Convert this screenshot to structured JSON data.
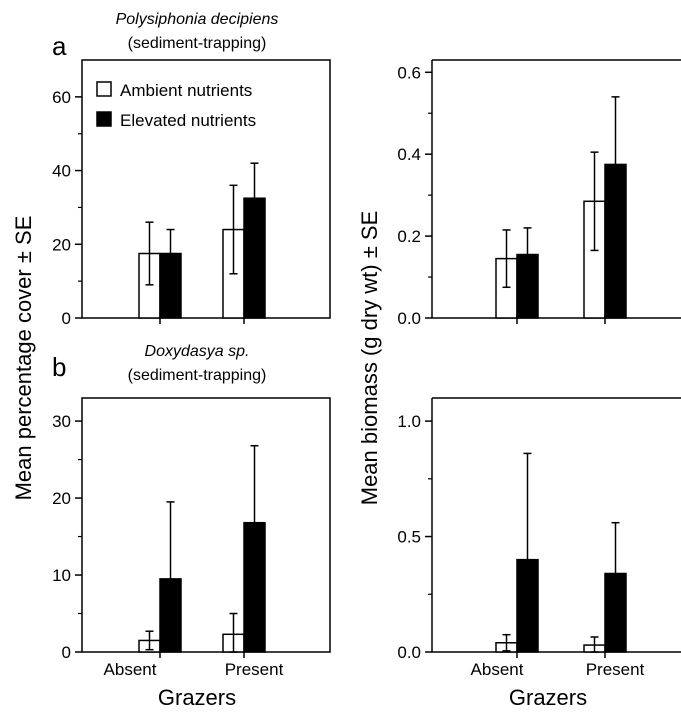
{
  "panel_a": {
    "letter": "a",
    "species": "Polysiphonia decipiens",
    "subtitle": "(sediment-trapping)"
  },
  "panel_b": {
    "letter": "b",
    "species": "Doxydasya sp.",
    "subtitle": "(sediment-trapping)"
  },
  "legend": [
    {
      "name": "Ambient nutrients",
      "color": "#ffffff"
    },
    {
      "name": "Elevated nutrients",
      "color": "#000000"
    }
  ],
  "left_ylabel": "Mean percentage cover ± SE",
  "right_ylabel": "Mean biomass (g dry wt) ± SE",
  "xlabel": "Grazers",
  "categories": [
    "Absent",
    "Present"
  ],
  "chart_data": [
    {
      "type": "bar",
      "categories": [
        "Absent",
        "Present"
      ],
      "ylim": [
        0,
        70
      ],
      "yticks": [
        0,
        20,
        40,
        60
      ],
      "yticklabels": [
        "0",
        "20",
        "40",
        "60"
      ],
      "series": [
        {
          "name": "Ambient nutrients",
          "values": [
            17.5,
            24
          ],
          "errors": [
            8.5,
            12
          ]
        },
        {
          "name": "Elevated nutrients",
          "values": [
            17.5,
            32.5
          ],
          "errors": [
            6.5,
            9.5
          ]
        }
      ]
    },
    {
      "type": "bar",
      "categories": [
        "Absent",
        "Present"
      ],
      "ylim": [
        0,
        0.63
      ],
      "yticks": [
        0,
        0.2,
        0.4,
        0.6
      ],
      "yticklabels": [
        "0.0",
        "0.2",
        "0.4",
        "0.6"
      ],
      "series": [
        {
          "name": "Ambient nutrients",
          "values": [
            0.145,
            0.285
          ],
          "errors": [
            0.07,
            0.12
          ]
        },
        {
          "name": "Elevated nutrients",
          "values": [
            0.155,
            0.375
          ],
          "errors": [
            0.065,
            0.165
          ]
        }
      ]
    },
    {
      "type": "bar",
      "categories": [
        "Absent",
        "Present"
      ],
      "ylim": [
        0,
        33
      ],
      "yticks": [
        0,
        10,
        20,
        30
      ],
      "yticklabels": [
        "0",
        "10",
        "20",
        "30"
      ],
      "series": [
        {
          "name": "Ambient nutrients",
          "values": [
            1.5,
            2.3
          ],
          "errors": [
            1.2,
            2.7
          ]
        },
        {
          "name": "Elevated nutrients",
          "values": [
            9.5,
            16.8
          ],
          "errors": [
            10.0,
            10.0
          ]
        }
      ]
    },
    {
      "type": "bar",
      "categories": [
        "Absent",
        "Present"
      ],
      "ylim": [
        0,
        1.1
      ],
      "yticks": [
        0,
        0.5,
        1.0
      ],
      "yticklabels": [
        "0.0",
        "0.5",
        "1.0"
      ],
      "series": [
        {
          "name": "Ambient nutrients",
          "values": [
            0.04,
            0.03
          ],
          "errors": [
            0.035,
            0.035
          ]
        },
        {
          "name": "Elevated nutrients",
          "values": [
            0.4,
            0.34
          ],
          "errors": [
            0.46,
            0.22
          ]
        }
      ]
    }
  ]
}
